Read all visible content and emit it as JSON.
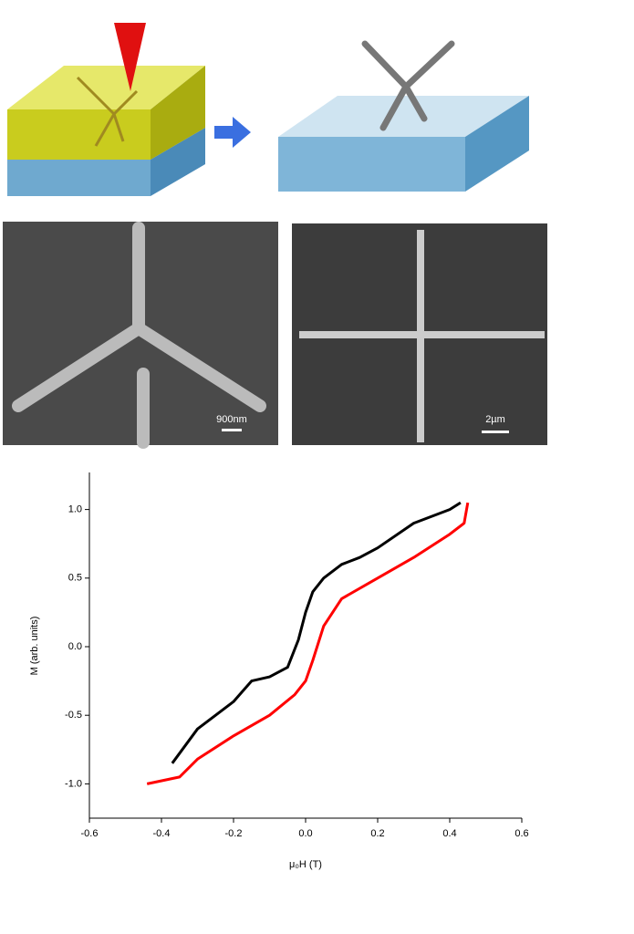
{
  "figure": {
    "scale_bars": [
      "900nm",
      "2µm"
    ]
  },
  "chart_data": {
    "type": "line",
    "x_label": "μ₀H (T)",
    "y_label": "M (arb. units)",
    "xlim": [
      -0.6,
      0.6
    ],
    "xticks": [
      -0.6,
      -0.4,
      -0.2,
      {
        "value": 0,
        "label": "0.0"
      },
      0.2,
      0.4,
      0.6
    ],
    "ylim": [
      -1.25,
      1.27
    ],
    "yticks": [
      {
        "value": -1,
        "label": "-1.0"
      },
      -0.5,
      {
        "value": 0,
        "label": "0.0"
      },
      0.5,
      {
        "value": 1,
        "label": "1.0"
      }
    ],
    "series": [
      {
        "name": "black",
        "color": "#000000",
        "x": [
          -0.37,
          -0.3,
          -0.25,
          -0.2,
          -0.15,
          -0.1,
          -0.05,
          -0.02,
          0,
          0.02,
          0.05,
          0.1,
          0.15,
          0.2,
          0.3,
          0.4,
          0.43
        ],
        "values": [
          -0.85,
          -0.6,
          -0.5,
          -0.4,
          -0.25,
          -0.22,
          -0.15,
          0.05,
          0.25,
          0.4,
          0.5,
          0.6,
          0.65,
          0.72,
          0.9,
          1.0,
          1.05
        ]
      },
      {
        "name": "red",
        "color": "#ff0000",
        "x": [
          -0.44,
          -0.35,
          -0.3,
          -0.2,
          -0.1,
          -0.03,
          0,
          0.02,
          0.05,
          0.1,
          0.2,
          0.3,
          0.4,
          0.44,
          0.45
        ],
        "values": [
          -1.0,
          -0.95,
          -0.82,
          -0.65,
          -0.5,
          -0.35,
          -0.25,
          -0.1,
          0.15,
          0.35,
          0.5,
          0.65,
          0.82,
          0.9,
          1.05
        ]
      }
    ]
  }
}
